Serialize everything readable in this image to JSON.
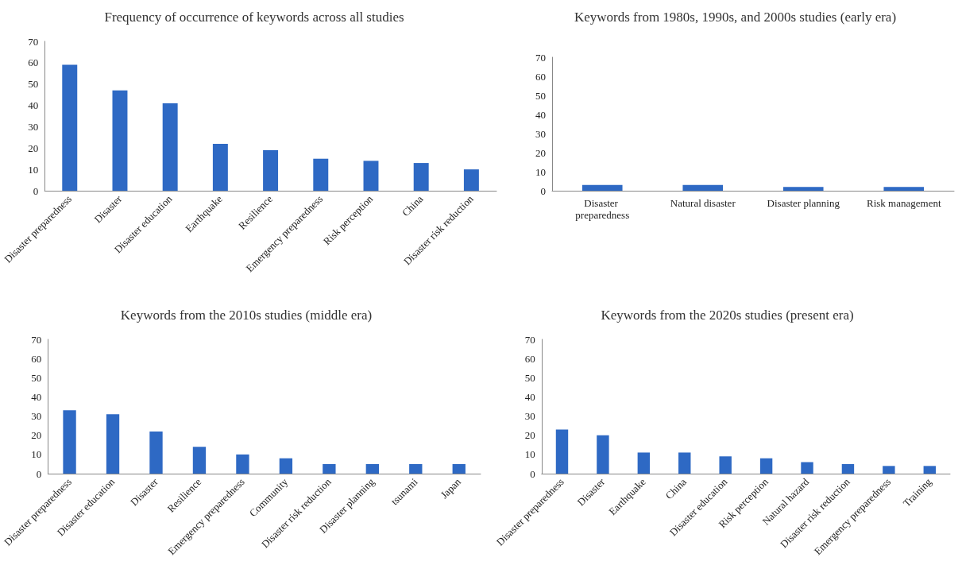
{
  "chart_data": [
    {
      "type": "bar",
      "title": "Frequency of occurrence of keywords across all studies",
      "categories": [
        "Disaster preparedness",
        "Disaster",
        "Disaster education",
        "Earthquake",
        "Resilience",
        "Emergency preparedness",
        "Risk perception",
        "China",
        "Disaster risk reduction"
      ],
      "values": [
        59,
        47,
        41,
        22,
        19,
        15,
        14,
        13,
        10
      ],
      "color": "#2e69c4",
      "ylim": [
        0,
        70
      ],
      "yticks": [
        0,
        10,
        20,
        30,
        40,
        50,
        60,
        70
      ]
    },
    {
      "type": "bar",
      "title": "Keywords from 1980s, 1990s, and 2000s studies (early era)",
      "categories": [
        "Disaster preparedness",
        "Natural disaster",
        "Disaster planning",
        "Risk management"
      ],
      "values": [
        3,
        3,
        2,
        2
      ],
      "color": "#2e69c4",
      "ylim": [
        0,
        70
      ],
      "yticks": [
        0,
        10,
        20,
        30,
        40,
        50,
        60,
        70
      ]
    },
    {
      "type": "bar",
      "title": "Keywords from the 2010s studies (middle era)",
      "categories": [
        "Disaster preparedness",
        "Disaster education",
        "Disaster",
        "Resilience",
        "Emergency preparedness",
        "Community",
        "Disaster risk reduction",
        "Disaster planning",
        "tsunami",
        "Japan"
      ],
      "values": [
        33,
        31,
        22,
        14,
        10,
        8,
        5,
        5,
        5,
        5
      ],
      "color": "#2e69c4",
      "ylim": [
        0,
        70
      ],
      "yticks": [
        0,
        10,
        20,
        30,
        40,
        50,
        60,
        70
      ]
    },
    {
      "type": "bar",
      "title": "Keywords from the 2020s studies (present era)",
      "categories": [
        "Disaster preparedness",
        "Disaster",
        "Earthquake",
        "China",
        "Disaster education",
        "Risk perception",
        "Natural hazard",
        "Disaster risk reduction",
        "Emergency preparedness",
        "Training"
      ],
      "values": [
        23,
        20,
        11,
        11,
        9,
        8,
        6,
        5,
        4,
        4
      ],
      "color": "#2e69c4",
      "ylim": [
        0,
        70
      ],
      "yticks": [
        0,
        10,
        20,
        30,
        40,
        50,
        60,
        70
      ]
    }
  ]
}
